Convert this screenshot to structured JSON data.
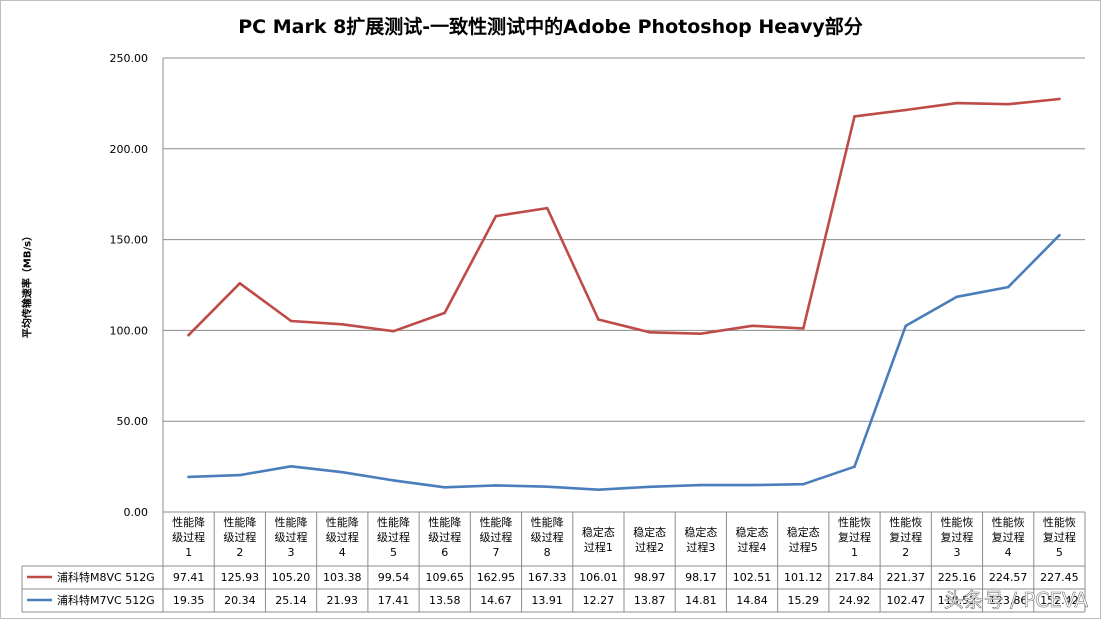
{
  "chart_data": {
    "type": "line",
    "title": "PC Mark 8扩展测试-一致性测试中的Adobe Photoshop Heavy部分",
    "ylabel": "平均传输速率（MB/s）",
    "xlabel": "",
    "ylim": [
      0,
      250
    ],
    "yticks": [
      "0.00",
      "50.00",
      "100.00",
      "150.00",
      "200.00",
      "250.00"
    ],
    "grid": true,
    "legend": "data-table-bottom",
    "categories": [
      [
        "性能降",
        "级过程",
        "1"
      ],
      [
        "性能降",
        "级过程",
        "2"
      ],
      [
        "性能降",
        "级过程",
        "3"
      ],
      [
        "性能降",
        "级过程",
        "4"
      ],
      [
        "性能降",
        "级过程",
        "5"
      ],
      [
        "性能降",
        "级过程",
        "6"
      ],
      [
        "性能降",
        "级过程",
        "7"
      ],
      [
        "性能降",
        "级过程",
        "8"
      ],
      [
        "稳定态",
        "过程1"
      ],
      [
        "稳定态",
        "过程2"
      ],
      [
        "稳定态",
        "过程3"
      ],
      [
        "稳定态",
        "过程4"
      ],
      [
        "稳定态",
        "过程5"
      ],
      [
        "性能恢",
        "复过程",
        "1"
      ],
      [
        "性能恢",
        "复过程",
        "2"
      ],
      [
        "性能恢",
        "复过程",
        "3"
      ],
      [
        "性能恢",
        "复过程",
        "4"
      ],
      [
        "性能恢",
        "复过程",
        "5"
      ]
    ],
    "series": [
      {
        "name": "浦科特M8VC 512G",
        "color": "#be4b48",
        "values": [
          97.41,
          125.93,
          105.2,
          103.38,
          99.54,
          109.65,
          162.95,
          167.33,
          106.01,
          98.97,
          98.17,
          102.51,
          101.12,
          217.84,
          221.37,
          225.16,
          224.57,
          227.45
        ],
        "labels": [
          "97.41",
          "125.93",
          "105.20",
          "103.38",
          "99.54",
          "109.65",
          "162.95",
          "167.33",
          "106.01",
          "98.97",
          "98.17",
          "102.51",
          "101.12",
          "217.84",
          "221.37",
          "225.16",
          "224.57",
          "227.45"
        ]
      },
      {
        "name": "浦科特M7VC 512G",
        "color": "#4a7ebb",
        "values": [
          19.35,
          20.34,
          25.14,
          21.93,
          17.41,
          13.58,
          14.67,
          13.91,
          12.27,
          13.87,
          14.81,
          14.84,
          15.29,
          24.92,
          102.47,
          118.52,
          123.86,
          152.42
        ],
        "labels": [
          "19.35",
          "20.34",
          "25.14",
          "21.93",
          "17.41",
          "13.58",
          "14.67",
          "13.91",
          "12.27",
          "13.87",
          "14.81",
          "14.84",
          "15.29",
          "24.92",
          "102.47",
          "118.52",
          "123.86",
          "152.42"
        ]
      }
    ]
  },
  "watermark": "头条号 / PCEVA"
}
